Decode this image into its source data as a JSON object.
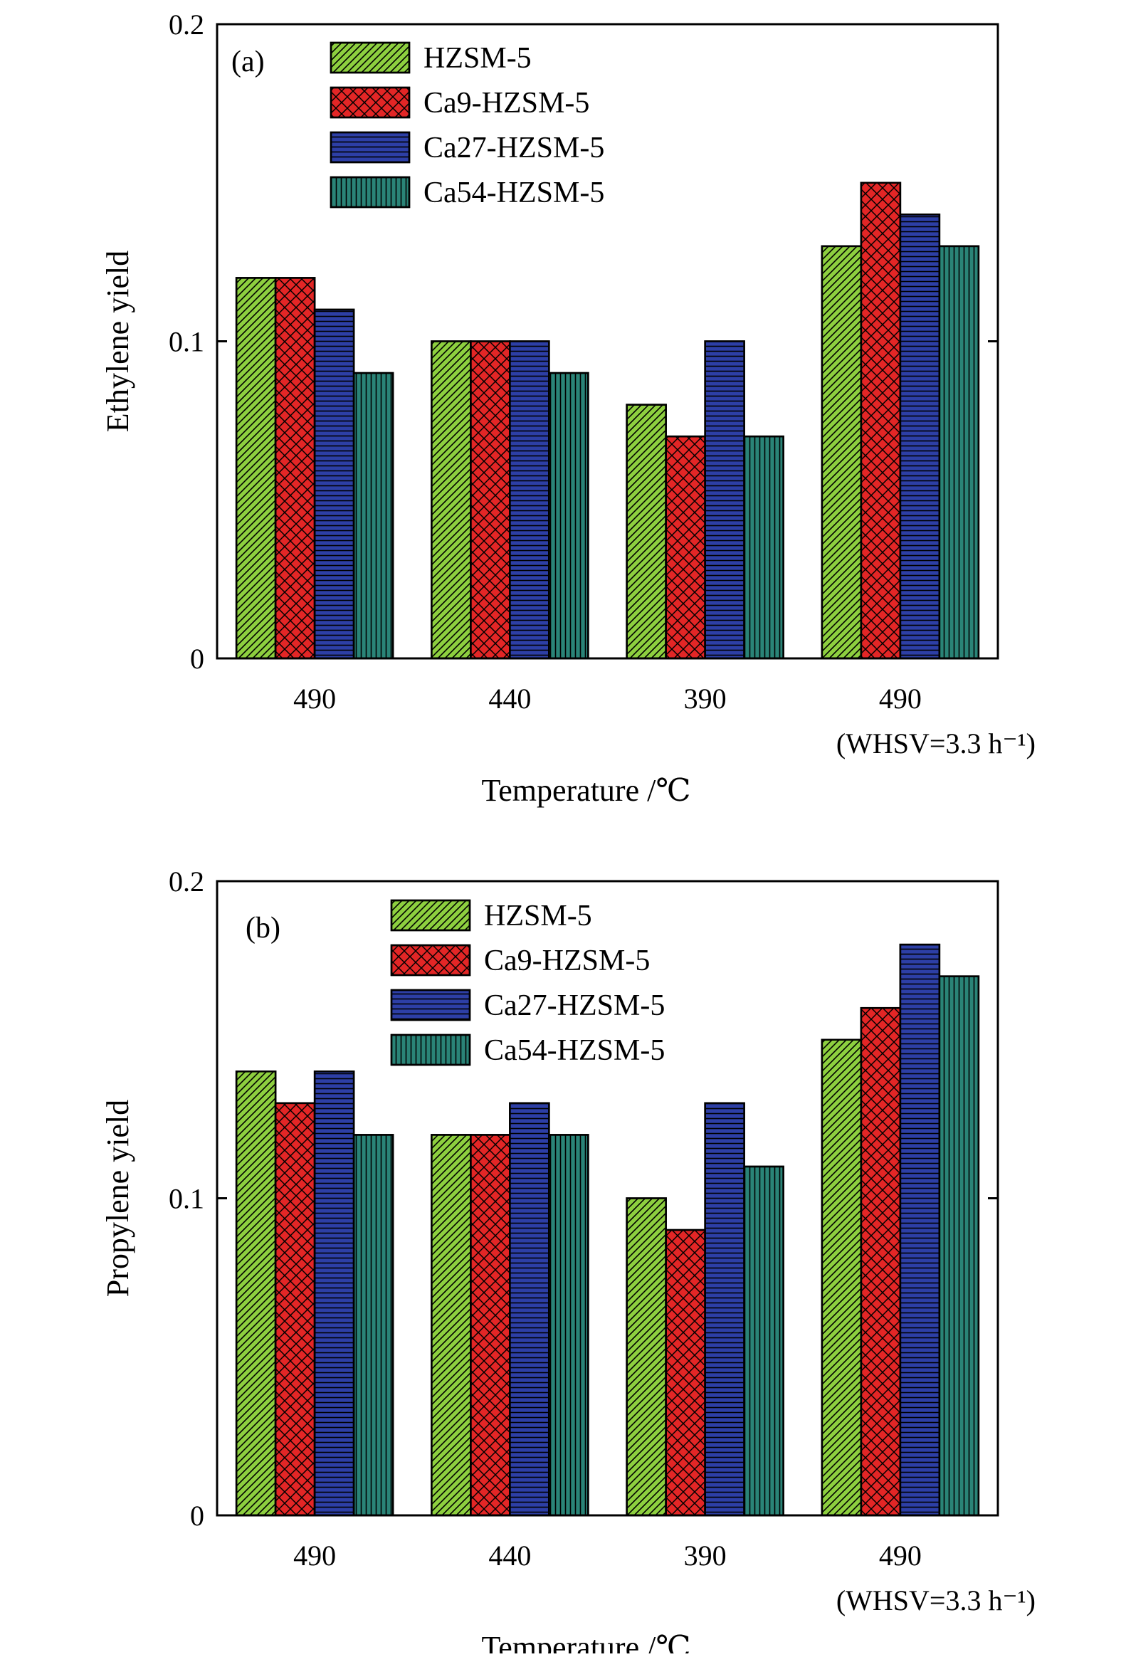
{
  "chart_data": [
    {
      "type": "bar",
      "panel_label": "(a)",
      "categories": [
        "490",
        "440",
        "390",
        "490"
      ],
      "category_sublabels": [
        "",
        "",
        "",
        "(WHSV=3.3 h⁻¹)"
      ],
      "xlabel": "Temperature /℃",
      "ylabel": "Ethylene yield",
      "ylim": [
        0,
        0.2
      ],
      "yticks": [
        "0",
        "0.1",
        "0.2"
      ],
      "grid": false,
      "legend_position": "top-left",
      "series": [
        {
          "name": "HZSM-5",
          "values": [
            0.12,
            0.1,
            0.08,
            0.13
          ],
          "color": "#8dcf3f",
          "pattern": "diagonal-hatch"
        },
        {
          "name": "Ca9-HZSM-5",
          "values": [
            0.12,
            0.1,
            0.07,
            0.15
          ],
          "color": "#e32626",
          "pattern": "crosshatch"
        },
        {
          "name": "Ca27-HZSM-5",
          "values": [
            0.11,
            0.1,
            0.1,
            0.14
          ],
          "color": "#2d3fa6",
          "pattern": "horizontal-lines"
        },
        {
          "name": "Ca54-HZSM-5",
          "values": [
            0.09,
            0.09,
            0.07,
            0.13
          ],
          "color": "#2a8477",
          "pattern": "vertical-lines"
        }
      ]
    },
    {
      "type": "bar",
      "panel_label": "(b)",
      "categories": [
        "490",
        "440",
        "390",
        "490"
      ],
      "category_sublabels": [
        "",
        "",
        "",
        "(WHSV=3.3 h⁻¹)"
      ],
      "xlabel": "Temperature /℃",
      "ylabel": "Propylene yield",
      "ylim": [
        0,
        0.2
      ],
      "yticks": [
        "0",
        "0.1",
        "0.2"
      ],
      "grid": false,
      "legend_position": "top-left",
      "series": [
        {
          "name": "HZSM-5",
          "values": [
            0.14,
            0.12,
            0.1,
            0.15
          ],
          "color": "#8dcf3f",
          "pattern": "diagonal-hatch"
        },
        {
          "name": "Ca9-HZSM-5",
          "values": [
            0.13,
            0.12,
            0.09,
            0.16
          ],
          "color": "#e32626",
          "pattern": "crosshatch"
        },
        {
          "name": "Ca27-HZSM-5",
          "values": [
            0.14,
            0.13,
            0.13,
            0.18
          ],
          "color": "#2d3fa6",
          "pattern": "horizontal-lines"
        },
        {
          "name": "Ca54-HZSM-5",
          "values": [
            0.12,
            0.12,
            0.11,
            0.17
          ],
          "color": "#2a8477",
          "pattern": "vertical-lines"
        }
      ]
    }
  ]
}
